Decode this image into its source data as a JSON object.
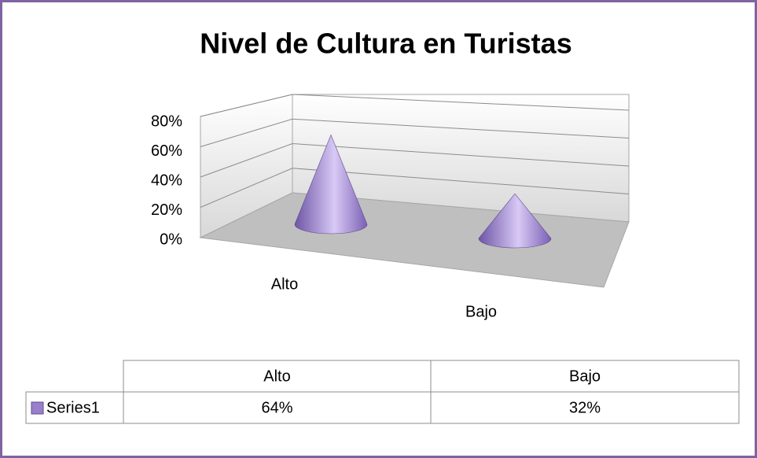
{
  "chart_data": {
    "type": "cone3d",
    "title": "Nivel de Cultura en Turistas",
    "categories": [
      "Alto",
      "Bajo"
    ],
    "series": [
      {
        "name": "Series1",
        "color": "#9a80cc",
        "values": [
          64,
          32
        ],
        "value_labels": [
          "64%",
          "32%"
        ]
      }
    ],
    "ylim": [
      0,
      80
    ],
    "yticks": [
      {
        "value": 0,
        "label": "0%"
      },
      {
        "value": 20,
        "label": "20%"
      },
      {
        "value": 40,
        "label": "40%"
      },
      {
        "value": 60,
        "label": "60%"
      },
      {
        "value": 80,
        "label": "80%"
      }
    ],
    "grid": true
  }
}
